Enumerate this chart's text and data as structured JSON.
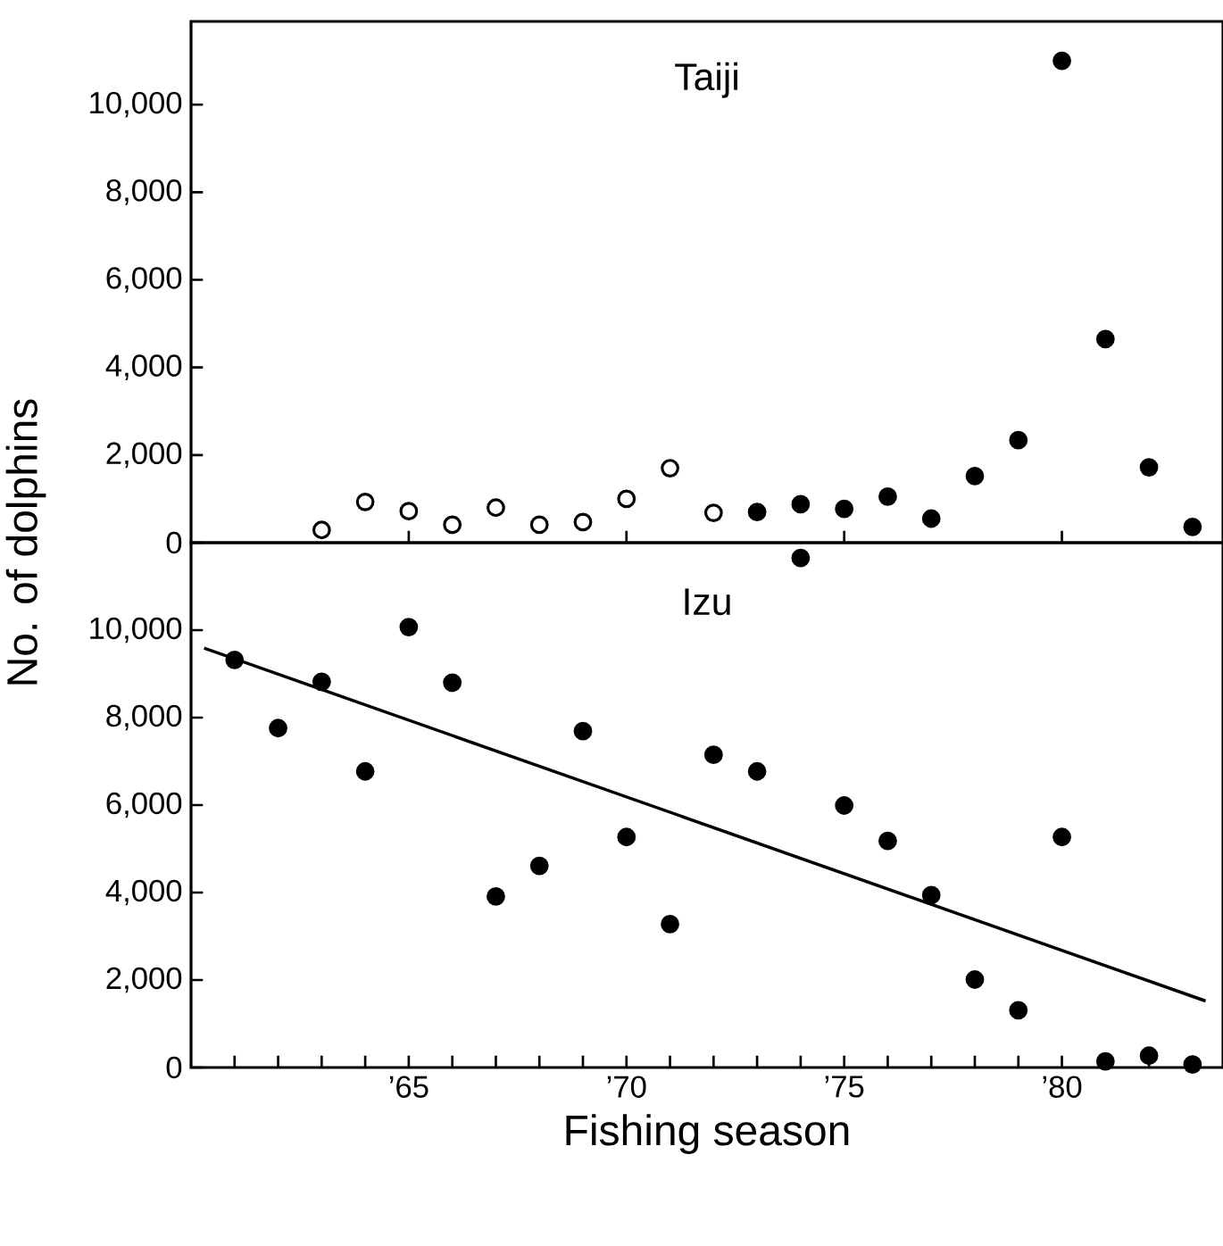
{
  "chart_data": [
    {
      "type": "scatter",
      "title": "Taiji",
      "ylabel": "No. of dolphins",
      "tick_labels": "y",
      "xlim": [
        1960,
        1983.7
      ],
      "ylim": [
        0,
        11900
      ],
      "xticks": [
        {
          "value": 1965,
          "label": null
        },
        {
          "value": 1970,
          "label": null
        },
        {
          "value": 1975,
          "label": null
        },
        {
          "value": 1980,
          "label": null
        }
      ],
      "yticks": [
        0,
        {
          "value": 2000,
          "label": "2,000"
        },
        {
          "value": 4000,
          "label": "4,000"
        },
        {
          "value": 6000,
          "label": "6,000"
        },
        {
          "value": 8000,
          "label": "8,000"
        },
        {
          "value": 10000,
          "label": "10,000"
        }
      ],
      "series": [
        {
          "color": "#ffffff",
          "marker": "circle",
          "x": [
            1963,
            1964,
            1965,
            1966,
            1967,
            1968,
            1969,
            1970,
            1971,
            1972
          ],
          "values": [
            290,
            930,
            720,
            410,
            800,
            410,
            470,
            1000,
            1700,
            680
          ]
        },
        {
          "color": "#000000",
          "marker": "circle",
          "x": [
            1973,
            1974,
            1975,
            1976,
            1977,
            1978,
            1979,
            1980,
            1981,
            1982,
            1983
          ],
          "values": [
            700,
            880,
            770,
            1050,
            550,
            1520,
            2340,
            11000,
            4650,
            1720,
            360
          ]
        }
      ]
    },
    {
      "type": "scatter",
      "title": "Izu",
      "xlabel": "Fishing season",
      "xlim": [
        1960,
        1983.7
      ],
      "ylim": [
        0,
        12000
      ],
      "xticks": [
        {
          "value": 1961,
          "label": null
        },
        {
          "value": 1962,
          "label": null
        },
        {
          "value": 1963,
          "label": null
        },
        {
          "value": 1964,
          "label": null
        },
        {
          "value": 1965,
          "label": "’65"
        },
        {
          "value": 1966,
          "label": null
        },
        {
          "value": 1967,
          "label": null
        },
        {
          "value": 1968,
          "label": null
        },
        {
          "value": 1969,
          "label": null
        },
        {
          "value": 1970,
          "label": "’70"
        },
        {
          "value": 1971,
          "label": null
        },
        {
          "value": 1972,
          "label": null
        },
        {
          "value": 1973,
          "label": null
        },
        {
          "value": 1974,
          "label": null
        },
        {
          "value": 1975,
          "label": "’75"
        },
        {
          "value": 1976,
          "label": null
        },
        {
          "value": 1977,
          "label": null
        },
        {
          "value": 1978,
          "label": null
        },
        {
          "value": 1979,
          "label": null
        },
        {
          "value": 1980,
          "label": "’80"
        },
        {
          "value": 1981,
          "label": null
        },
        {
          "value": 1982,
          "label": null
        },
        {
          "value": 1983,
          "label": null
        }
      ],
      "yticks": [
        0,
        {
          "value": 2000,
          "label": "2,000"
        },
        {
          "value": 4000,
          "label": "4,000"
        },
        {
          "value": 6000,
          "label": "6,000"
        },
        {
          "value": 8000,
          "label": "8,000"
        },
        {
          "value": 10000,
          "label": "10,000"
        }
      ],
      "series": [
        {
          "color": "#000000",
          "marker": "circle",
          "x": [
            1961,
            1962,
            1963,
            1964,
            1965,
            1966,
            1967,
            1968,
            1969,
            1970,
            1971,
            1972,
            1973,
            1974,
            1975,
            1976,
            1977,
            1978,
            1979,
            1980,
            1981,
            1982,
            1983
          ],
          "values": [
            9320,
            7760,
            8820,
            6770,
            10070,
            8800,
            3910,
            4610,
            7690,
            5270,
            3280,
            7150,
            6770,
            11650,
            5990,
            5180,
            3940,
            2010,
            1310,
            5270,
            140,
            270,
            70
          ]
        },
        {
          "type": "line",
          "marker": "none",
          "line_style": "solid",
          "color": "#000000",
          "x": [
            1960.3,
            1983.3
          ],
          "values": [
            9590,
            1520
          ]
        }
      ]
    }
  ]
}
